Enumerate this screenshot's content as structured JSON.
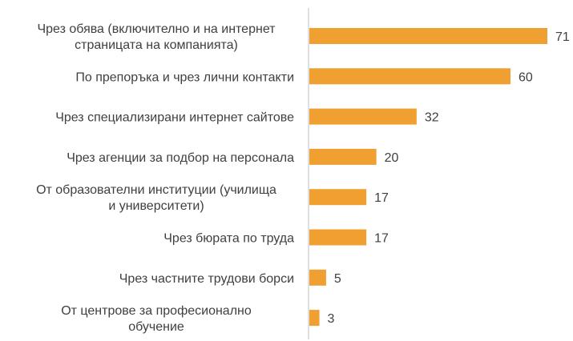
{
  "chart_data": {
    "type": "bar",
    "orientation": "horizontal",
    "categories": [
      [
        "Чрез обява (включително и на интернет",
        "страницата на компанията)"
      ],
      [
        "По препоръка и чрез лични контакти"
      ],
      [
        "Чрез специализирани интернет сайтове"
      ],
      [
        "Чрез агенции за подбор на персонала"
      ],
      [
        "От образователни институции (училища",
        "и университети)"
      ],
      [
        "Чрез бюрата по труда"
      ],
      [
        "Чрез частните трудови борси"
      ],
      [
        "От центрове за професионално",
        "обучение"
      ]
    ],
    "values": [
      71,
      60,
      32,
      20,
      17,
      17,
      5,
      3
    ],
    "data_labels": [
      "71",
      "60",
      "32",
      "20",
      "17",
      "17",
      "5",
      "3"
    ],
    "xlim": [
      0,
      71
    ],
    "grid": false,
    "legend": "none",
    "bar_color": "#F0A030",
    "axis_color": "#BFBFBF",
    "text_color": "#3F3F3F"
  }
}
